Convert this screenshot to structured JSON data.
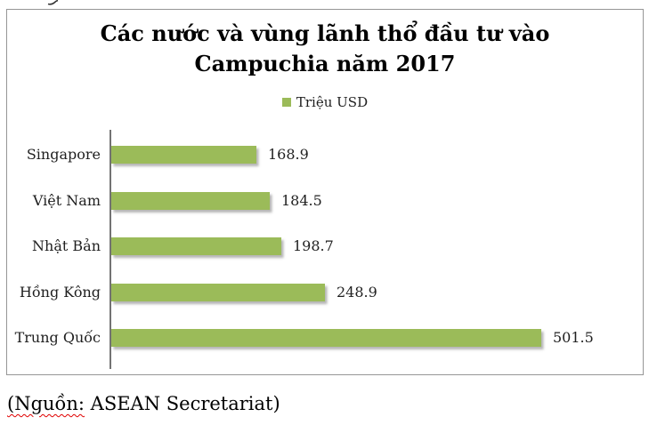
{
  "page": {
    "source_prefix": "(Nguồn:",
    "source_rest": " ASEAN Secretariat)"
  },
  "colors": {
    "bar": "#9BBB59",
    "axis": "#737373",
    "frame_border": "#969696",
    "text": "#1F1F1F",
    "squiggle_red": "#E00000"
  },
  "chart_data": {
    "type": "bar",
    "orientation": "horizontal",
    "title": "Các nước và vùng lãnh thổ đầu tư vào Campuchia năm 2017",
    "title_lines": [
      "Các nước và vùng lãnh thổ đầu tư vào",
      "Campuchia năm 2017"
    ],
    "legend_entries": [
      "Triệu USD"
    ],
    "legend_position": "top",
    "unit": "Triệu USD",
    "categories": [
      "Singapore",
      "Việt Nam",
      "Nhật Bản",
      "Hồng Kông",
      "Trung Quốc"
    ],
    "values": [
      168.9,
      184.5,
      198.7,
      248.9,
      501.5
    ],
    "data_labels": [
      "168.9",
      "184.5",
      "198.7",
      "248.9",
      "501.5"
    ],
    "xlim": [
      0,
      520
    ],
    "grid": false,
    "value_axis_visible": false
  }
}
